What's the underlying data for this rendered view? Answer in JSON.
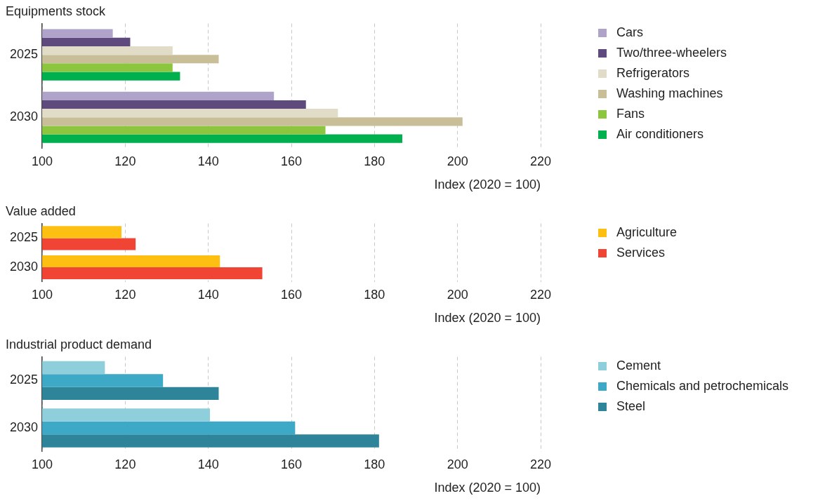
{
  "chart_data": [
    {
      "type": "bar",
      "orientation": "horizontal",
      "title": "Equipments stock",
      "xlabel": "Index (2020 = 100)",
      "categories": [
        "2025",
        "2030"
      ],
      "series": [
        {
          "name": "Cars",
          "color": "#b0a3c9",
          "values": [
            117,
            155.8
          ]
        },
        {
          "name": "Two/three-wheelers",
          "color": "#5e4a7d",
          "values": [
            121.2,
            163.5
          ]
        },
        {
          "name": "Refrigerators",
          "color": "#e0dcc8",
          "values": [
            131.4,
            171.2
          ]
        },
        {
          "name": "Washing machines",
          "color": "#c8bf98",
          "values": [
            142.5,
            201.2
          ]
        },
        {
          "name": "Fans",
          "color": "#8cc63f",
          "values": [
            131.4,
            168.2
          ]
        },
        {
          "name": "Air conditioners",
          "color": "#00b04f",
          "values": [
            133.2,
            186.7
          ]
        }
      ],
      "xlim": [
        100,
        220
      ],
      "xticks": [
        100,
        120,
        140,
        160,
        180,
        200,
        220
      ],
      "grid": "x",
      "legend": "right"
    },
    {
      "type": "bar",
      "orientation": "horizontal",
      "title": "Value added",
      "xlabel": "Index (2020 = 100)",
      "categories": [
        "2025",
        "2030"
      ],
      "series": [
        {
          "name": "Agriculture",
          "color": "#fdbf12",
          "values": [
            119.1,
            142.8
          ]
        },
        {
          "name": "Services",
          "color": "#f04434",
          "values": [
            122.5,
            153
          ]
        }
      ],
      "xlim": [
        100,
        220
      ],
      "xticks": [
        100,
        120,
        140,
        160,
        180,
        200,
        220
      ],
      "grid": "x",
      "legend": "right"
    },
    {
      "type": "bar",
      "orientation": "horizontal",
      "title": "Industrial product demand",
      "xlabel": "Index (2020 = 100)",
      "categories": [
        "2025",
        "2030"
      ],
      "series": [
        {
          "name": "Cement",
          "color": "#8fcfdc",
          "values": [
            115.1,
            140.4
          ]
        },
        {
          "name": "Chemicals and petrochemicals",
          "color": "#3ea9c6",
          "values": [
            129.1,
            160.9
          ]
        },
        {
          "name": "Steel",
          "color": "#2e8599",
          "values": [
            142.5,
            181.1
          ]
        }
      ],
      "xlim": [
        100,
        220
      ],
      "xticks": [
        100,
        120,
        140,
        160,
        180,
        200,
        220
      ],
      "grid": "x",
      "legend": "right"
    }
  ]
}
